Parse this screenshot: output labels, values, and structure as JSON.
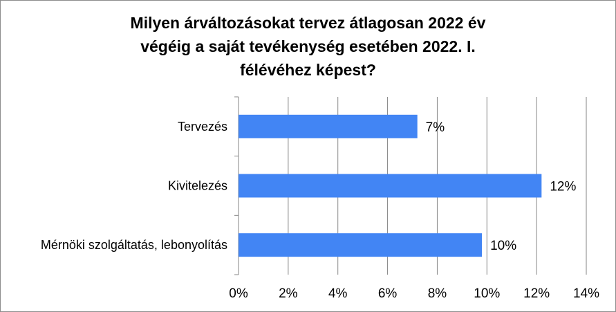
{
  "chart_data": {
    "type": "bar",
    "orientation": "horizontal",
    "title_lines": [
      "Milyen árváltozásokat tervez átlagosan 2022 év",
      "végéig a saját tevékenység esetében 2022. I.",
      "félévéhez képest?"
    ],
    "categories": [
      "Tervezés",
      "Kivitelezés",
      "Mérnöki szolgáltatás, lebonyolítás"
    ],
    "values": [
      7.2,
      12.2,
      9.8
    ],
    "data_labels": [
      "7%",
      "12%",
      "10%"
    ],
    "xlim": [
      0,
      14
    ],
    "xticks": [
      0,
      2,
      4,
      6,
      8,
      10,
      12,
      14
    ],
    "xtick_labels": [
      "0%",
      "2%",
      "4%",
      "6%",
      "8%",
      "10%",
      "12%",
      "14%"
    ],
    "grid": true,
    "legend": "none",
    "bar_color": "#4285f4"
  }
}
